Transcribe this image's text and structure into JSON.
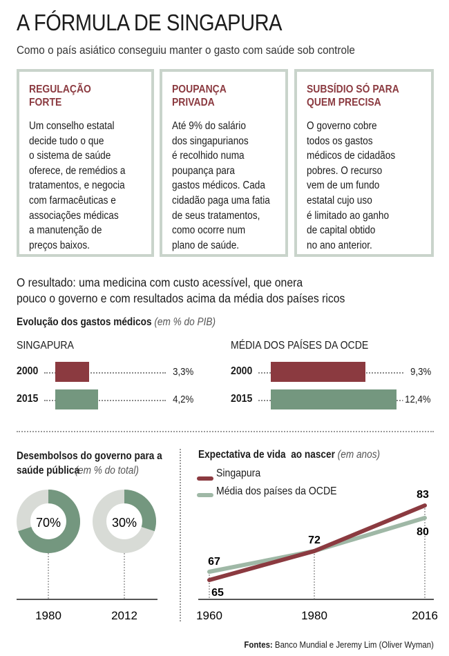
{
  "title": "A FÓRMULA DE SINGAPURA",
  "subtitle": "Como o país asiático conseguiu manter o gasto com saúde sob controle",
  "boxes": [
    {
      "heading": "REGULAÇÃO\nFORTE",
      "body": "Um conselho estatal\ndecide tudo o que\no sistema de saúde\noferece, de remédios a\ntratamentos, e negocia\ncom farmacêuticas e\nassociações médicas\na manutenção de\npreços baixos."
    },
    {
      "heading": "POUPANÇA\nPRIVADA",
      "body": "Até 9% do salário\ndos singapurianos\né recolhido numa\npoupança para\ngastos médicos. Cada\ncidadão paga uma fatia\nde seus tratamentos,\ncomo ocorre num\nplano de saúde."
    },
    {
      "heading": "SUBSÍDIO SÓ PARA\nQUEM PRECISA",
      "body": "O governo cobre\ntodos os gastos\nmédicos de cidadãos\npobres. O recurso\nvem de um fundo\nestatal cujo uso\né limitado ao ganho\nde capital obtido\nno ano anterior."
    }
  ],
  "result": "O resultado: uma medicina com custo acessível, que onera\npouco o governo e com resultados acima da média dos países ricos",
  "colors": {
    "red": "#8b3a40",
    "green": "#74977f",
    "lightgreen": "#9fb8a6",
    "gray": "#d8dbd6",
    "border": "#c9d4cb"
  },
  "chart_data": [
    {
      "type": "bar",
      "title": "Evolução dos gastos médicos",
      "unit": "(em % do PIB)",
      "groups": [
        {
          "name": "SINGAPURA",
          "categories": [
            "2000",
            "2015"
          ],
          "values": [
            3.3,
            4.2
          ],
          "labels": [
            "3,3%",
            "4,2%"
          ]
        },
        {
          "name": "MÉDIA DOS PAÍSES DA OCDE",
          "categories": [
            "2000",
            "2015"
          ],
          "values": [
            9.3,
            12.4
          ],
          "labels": [
            "9,3%",
            "12,4%"
          ]
        }
      ]
    },
    {
      "type": "pie",
      "title": "Desembolsos do governo para a saúde pública",
      "unit": "(em % do total)",
      "categories": [
        "1980",
        "2012"
      ],
      "values": [
        70,
        30
      ],
      "labels": [
        "70%",
        "30%"
      ]
    },
    {
      "type": "line",
      "title": "Expectativa de vida  ao nascer",
      "unit": "(em anos)",
      "x": [
        "1960",
        "1980",
        "2016"
      ],
      "series": [
        {
          "name": "Singapura",
          "values": [
            65,
            72,
            83
          ]
        },
        {
          "name": "Média dos países da OCDE",
          "values": [
            67,
            72,
            80
          ]
        }
      ],
      "point_labels": {
        "start_sg": "65",
        "start_oc": "67",
        "mid": "72",
        "end_sg": "83",
        "end_oc": "80"
      }
    }
  ],
  "source": {
    "label": "Fontes:",
    "text": " Banco Mundial e Jeremy Lim (Oliver Wyman)"
  }
}
